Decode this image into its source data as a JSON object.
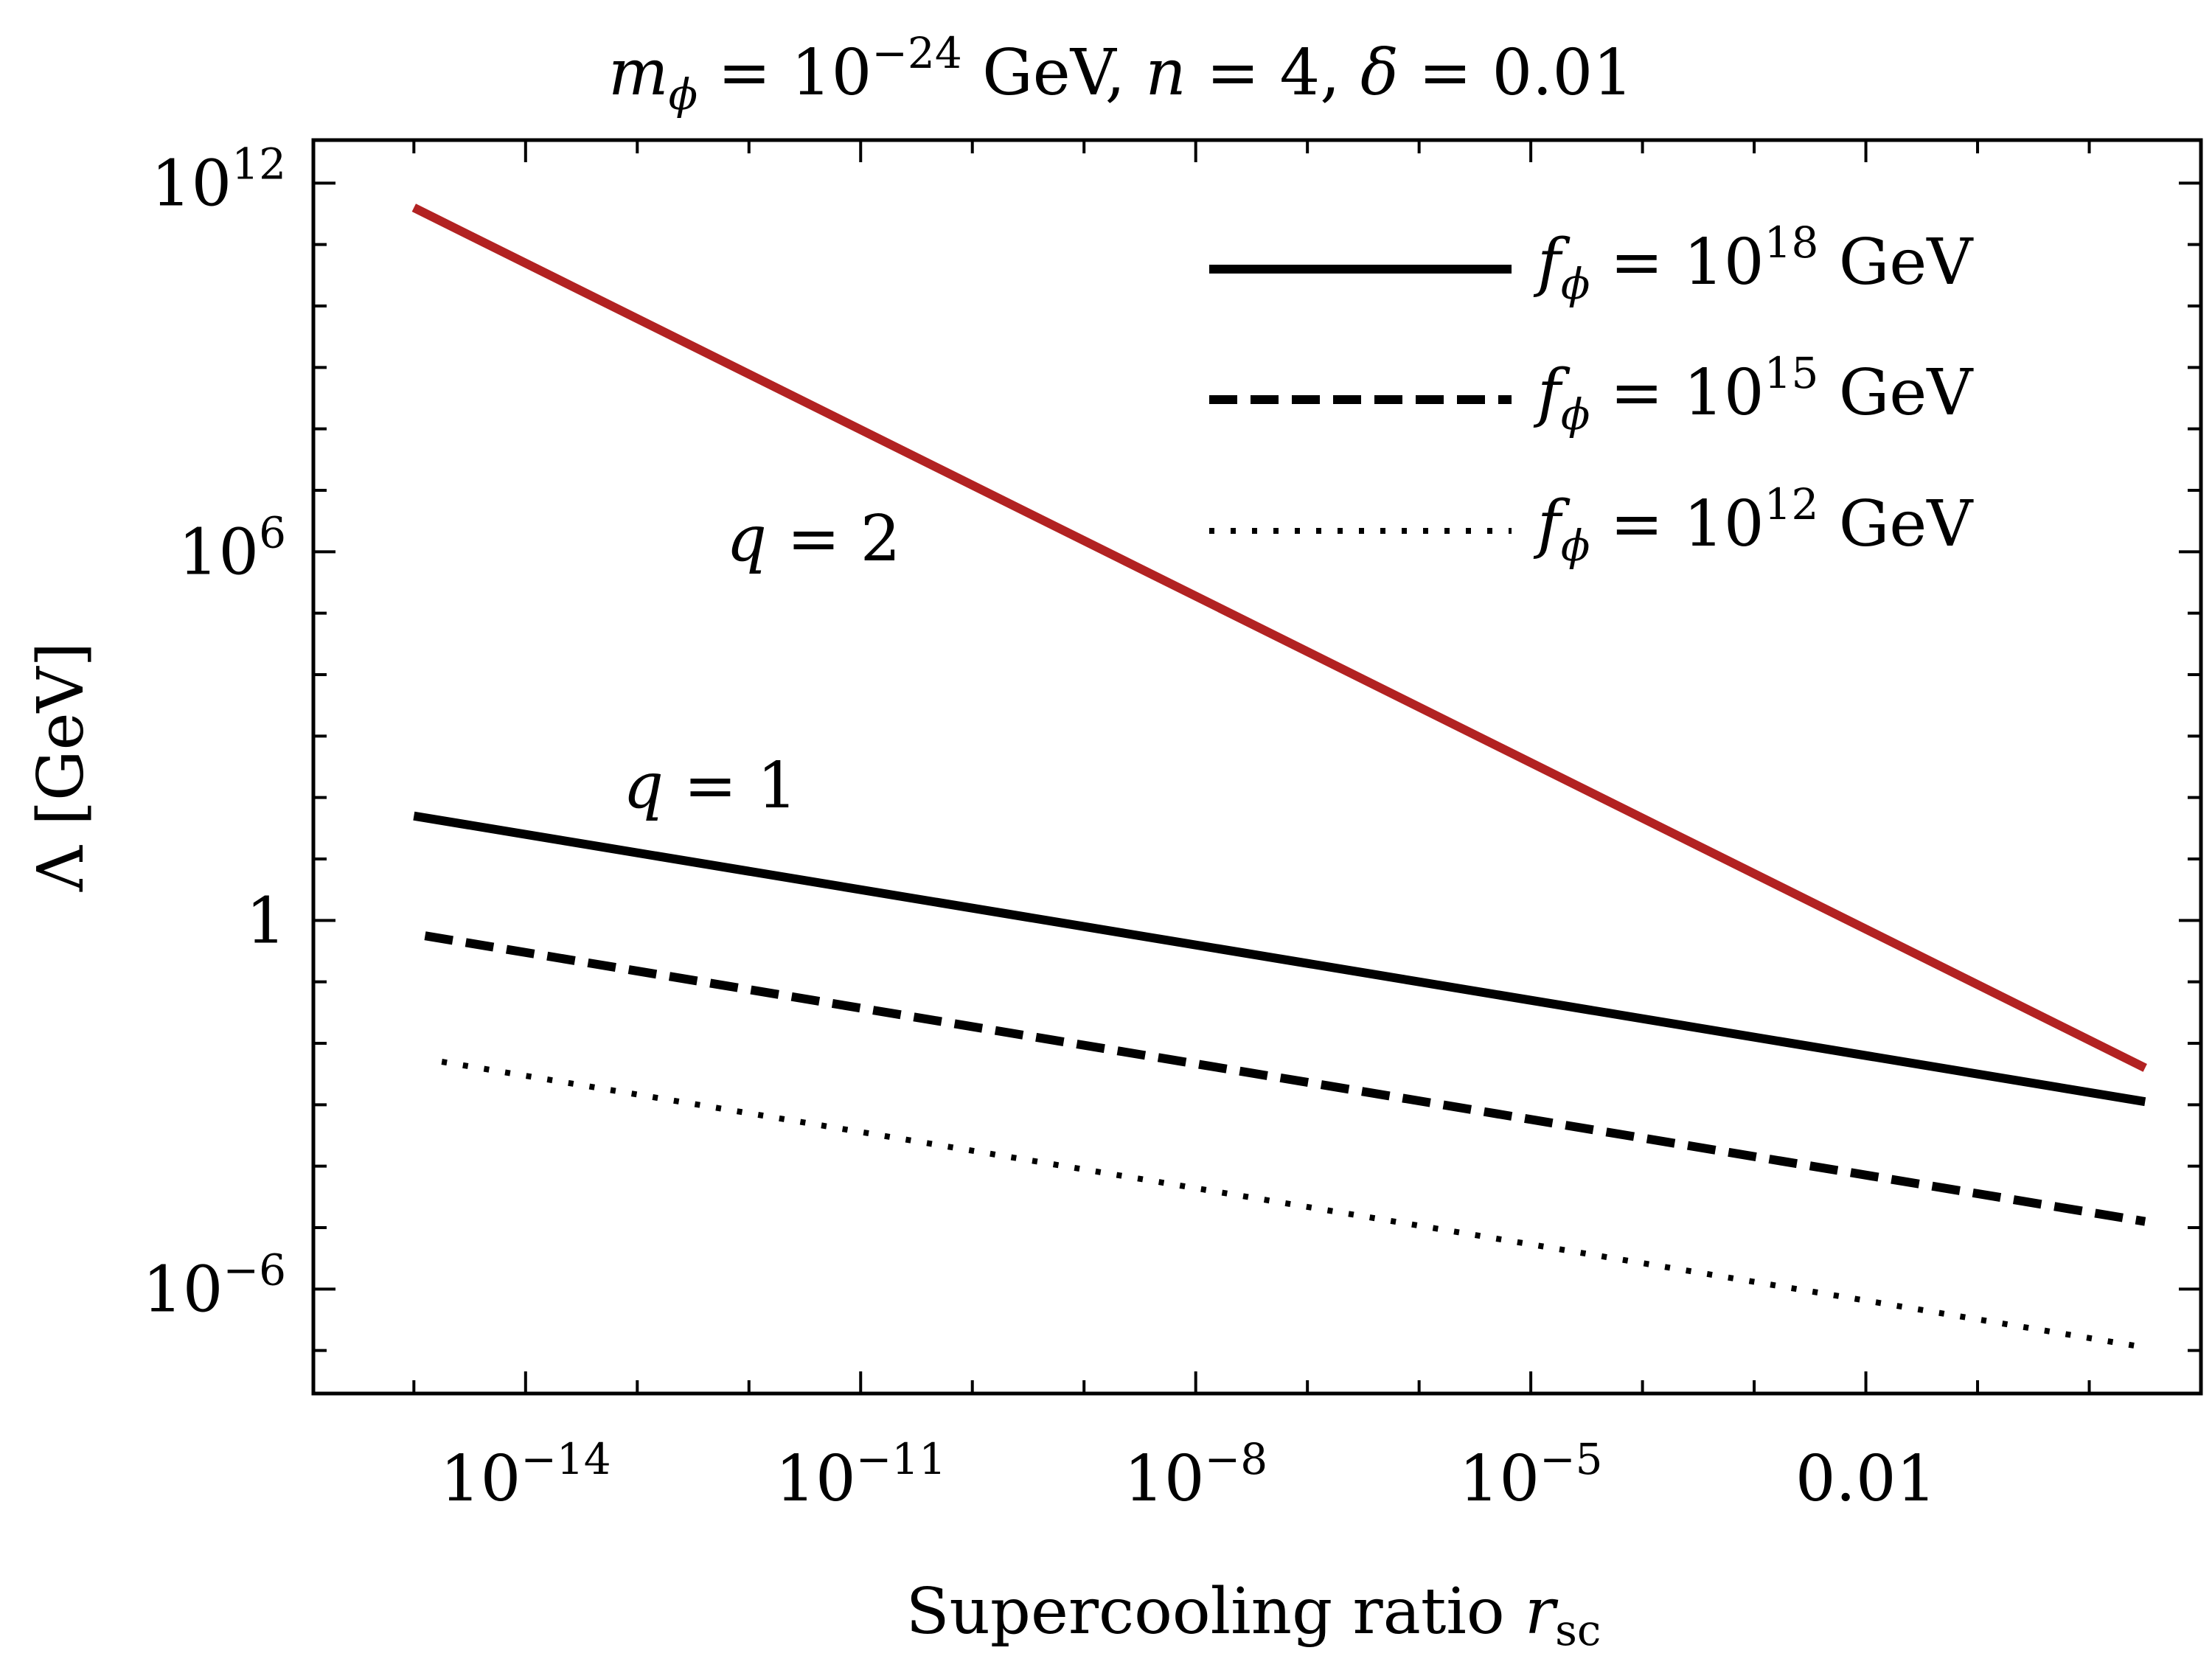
{
  "chart_data": {
    "type": "line",
    "title": {
      "m_sym": "m",
      "m_sub": "ϕ",
      "eq1": " = 10",
      "exp1": "−24",
      "gev": " GeV, ",
      "n_sym": "n",
      "eq2": " = 4, ",
      "delta_sym": "δ",
      "eq3": " = 0.01"
    },
    "xlabel": {
      "text": "Supercooling ratio ",
      "var": "r",
      "sub": "sc"
    },
    "ylabel": {
      "text": "Λ [GeV]"
    },
    "x_scale": "log",
    "y_scale": "log",
    "xlim_log10": [
      -15.9,
      1.0
    ],
    "ylim_log10": [
      -7.7,
      12.7
    ],
    "x_ticks": [
      {
        "log10": -14,
        "base": "10",
        "exp": "−14"
      },
      {
        "log10": -11,
        "base": "10",
        "exp": "−11"
      },
      {
        "log10": -8,
        "base": "10",
        "exp": "−8"
      },
      {
        "log10": -5,
        "base": "10",
        "exp": "−5"
      },
      {
        "log10": -2,
        "base": "0.01",
        "exp": ""
      }
    ],
    "y_ticks": [
      {
        "log10": 12,
        "base": "10",
        "exp": "12"
      },
      {
        "log10": 6,
        "base": "10",
        "exp": "6"
      },
      {
        "log10": 0,
        "base": "1",
        "exp": ""
      },
      {
        "log10": -6,
        "base": "10",
        "exp": "−6"
      }
    ],
    "series": [
      {
        "name": "q = 2, f_ϕ = 10^18 GeV",
        "style": "solid",
        "color": "#b22222",
        "x_log10": [
          -15.0,
          0.5
        ],
        "y_log10": [
          11.6,
          -2.4
        ]
      },
      {
        "name": "q = 1, f_ϕ = 10^18 GeV",
        "style": "solid",
        "color": "#000000",
        "x_log10": [
          -15.0,
          0.5
        ],
        "y_log10": [
          1.7,
          -2.95
        ]
      },
      {
        "name": "q = 1, f_ϕ = 10^15 GeV",
        "style": "dashed",
        "color": "#000000",
        "x_log10": [
          -14.9,
          0.5
        ],
        "y_log10": [
          -0.25,
          -4.9
        ]
      },
      {
        "name": "q = 1, f_ϕ = 10^12 GeV",
        "style": "dotted",
        "color": "#000000",
        "x_log10": [
          -14.75,
          0.5
        ],
        "y_log10": [
          -2.3,
          -6.95
        ]
      }
    ],
    "annotations": [
      {
        "sym": "q",
        "eq": " = 2"
      },
      {
        "sym": "q",
        "eq": " = 1"
      }
    ],
    "legend": {
      "position": "top-right",
      "entries": [
        {
          "style": "solid",
          "sym": "f",
          "sub": "ϕ",
          "eq": " = 10",
          "exp": "18",
          "unit": " GeV"
        },
        {
          "style": "dashed",
          "sym": "f",
          "sub": "ϕ",
          "eq": " = 10",
          "exp": "15",
          "unit": " GeV"
        },
        {
          "style": "dotted",
          "sym": "f",
          "sub": "ϕ",
          "eq": " = 10",
          "exp": "12",
          "unit": " GeV"
        }
      ]
    }
  }
}
